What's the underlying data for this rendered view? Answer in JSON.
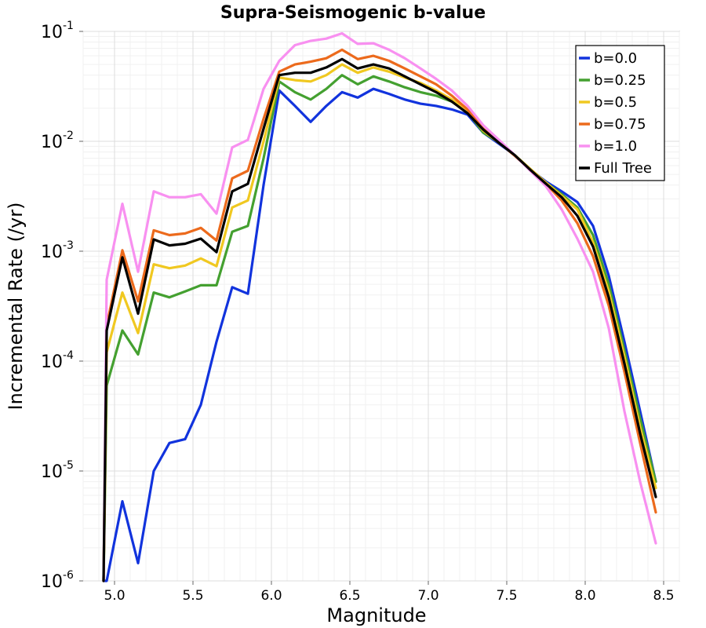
{
  "chart_data": {
    "type": "line",
    "title": "Supra-Seismogenic b-value",
    "xlabel": "Magnitude",
    "ylabel": "Incremental Rate (/yr)",
    "xlim": [
      4.8,
      8.6
    ],
    "ylim": [
      1e-06,
      0.1
    ],
    "yscale": "log",
    "grid": true,
    "legend_position": "top-right",
    "x_ticks": [
      "5.0",
      "5.5",
      "6.0",
      "6.5",
      "7.0",
      "7.5",
      "8.0",
      "8.5"
    ],
    "y_ticks": [
      {
        "base": "10",
        "exp": "-6"
      },
      {
        "base": "10",
        "exp": "-5"
      },
      {
        "base": "10",
        "exp": "-4"
      },
      {
        "base": "10",
        "exp": "-3"
      },
      {
        "base": "10",
        "exp": "-2"
      },
      {
        "base": "10",
        "exp": "-1"
      }
    ],
    "x": [
      4.95,
      5.05,
      5.15,
      5.25,
      5.35,
      5.45,
      5.55,
      5.65,
      5.75,
      5.85,
      5.95,
      6.05,
      6.15,
      6.25,
      6.35,
      6.45,
      6.55,
      6.65,
      6.75,
      6.85,
      6.95,
      7.05,
      7.15,
      7.25,
      7.35,
      7.45,
      7.55,
      7.65,
      7.75,
      7.85,
      7.95,
      8.05,
      8.15,
      8.25,
      8.35,
      8.45
    ],
    "series": [
      {
        "name": "b=0.0",
        "color": "#1133dd",
        "start_x": 4.93,
        "start_y": 1e-06,
        "values": [
          1e-06,
          5.3e-06,
          1.45e-06,
          1e-05,
          1.8e-05,
          1.95e-05,
          4e-05,
          0.00015,
          0.00047,
          0.00041,
          0.004,
          0.029,
          0.021,
          0.015,
          0.021,
          0.028,
          0.025,
          0.03,
          0.027,
          0.024,
          0.022,
          0.021,
          0.0195,
          0.0175,
          0.012,
          0.0095,
          0.0075,
          0.0055,
          0.0043,
          0.0035,
          0.0028,
          0.0017,
          0.0006,
          0.00015,
          3.5e-05,
          8e-06
        ]
      },
      {
        "name": "b=0.25",
        "color": "#44a030",
        "start_x": 4.93,
        "start_y": 1e-06,
        "values": [
          6e-05,
          0.00019,
          0.000115,
          0.00042,
          0.00038,
          0.00043,
          0.00049,
          0.00049,
          0.0015,
          0.0017,
          0.007,
          0.035,
          0.028,
          0.024,
          0.03,
          0.04,
          0.033,
          0.039,
          0.035,
          0.031,
          0.028,
          0.026,
          0.023,
          0.0185,
          0.012,
          0.0098,
          0.0075,
          0.0056,
          0.0042,
          0.0033,
          0.0025,
          0.0014,
          0.0005,
          0.000125,
          3e-05,
          8e-06
        ]
      },
      {
        "name": "b=0.5",
        "color": "#f0c820",
        "start_x": 4.93,
        "start_y": 1e-06,
        "values": [
          0.00012,
          0.00042,
          0.00018,
          0.00076,
          0.0007,
          0.00074,
          0.00086,
          0.00073,
          0.0025,
          0.0029,
          0.01,
          0.038,
          0.036,
          0.035,
          0.04,
          0.05,
          0.042,
          0.047,
          0.043,
          0.038,
          0.034,
          0.029,
          0.024,
          0.019,
          0.0125,
          0.0097,
          0.0075,
          0.0056,
          0.0042,
          0.0032,
          0.0024,
          0.0012,
          0.00043,
          0.00011,
          2.5e-05,
          7e-06
        ]
      },
      {
        "name": "b=0.75",
        "color": "#ec6a1c",
        "start_x": 4.93,
        "start_y": 1e-06,
        "values": [
          0.00021,
          0.00102,
          0.00035,
          0.00155,
          0.0014,
          0.00145,
          0.00163,
          0.00125,
          0.0046,
          0.0054,
          0.016,
          0.043,
          0.05,
          0.053,
          0.057,
          0.068,
          0.056,
          0.06,
          0.054,
          0.046,
          0.039,
          0.033,
          0.026,
          0.0195,
          0.013,
          0.0098,
          0.0074,
          0.0055,
          0.0041,
          0.0029,
          0.0018,
          0.0009,
          0.00032,
          8e-05,
          1.8e-05,
          4.2e-06
        ]
      },
      {
        "name": "b=1.0",
        "color": "#f890f0",
        "start_x": 4.93,
        "start_y": 1e-06,
        "values": [
          0.00055,
          0.0027,
          0.00065,
          0.0035,
          0.0031,
          0.0031,
          0.0033,
          0.0022,
          0.0088,
          0.0103,
          0.03,
          0.054,
          0.075,
          0.082,
          0.086,
          0.096,
          0.077,
          0.078,
          0.068,
          0.057,
          0.046,
          0.037,
          0.029,
          0.021,
          0.014,
          0.0103,
          0.0075,
          0.0054,
          0.0039,
          0.0024,
          0.0013,
          0.00065,
          0.0002,
          3.5e-05,
          8e-06,
          2.2e-06
        ]
      },
      {
        "name": "Full Tree",
        "color": "#000000",
        "start_x": 4.93,
        "start_y": 1e-06,
        "values": [
          0.00019,
          0.00088,
          0.00027,
          0.00128,
          0.00113,
          0.00117,
          0.0013,
          0.00098,
          0.0035,
          0.0041,
          0.013,
          0.04,
          0.042,
          0.042,
          0.047,
          0.056,
          0.046,
          0.05,
          0.046,
          0.039,
          0.033,
          0.028,
          0.023,
          0.018,
          0.0128,
          0.0097,
          0.0075,
          0.0055,
          0.0041,
          0.0031,
          0.0021,
          0.0011,
          0.00038,
          9.5e-05,
          2.2e-05,
          5.8e-06
        ]
      }
    ]
  }
}
